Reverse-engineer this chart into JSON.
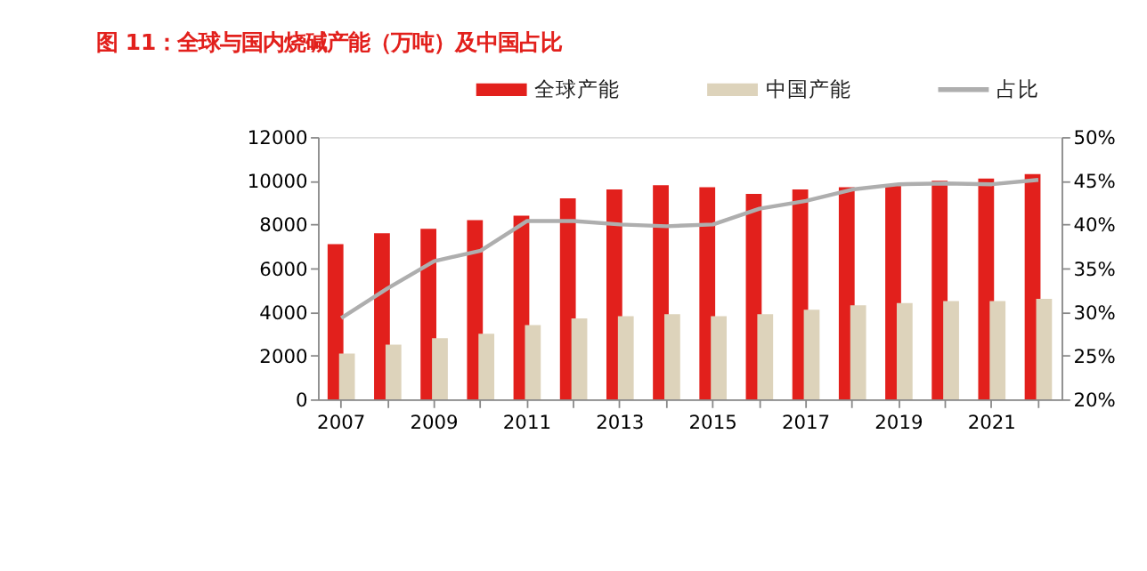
{
  "chart_data": {
    "type": "bar",
    "title": "图 11：全球与国内烧碱产能（万吨）及中国占比",
    "categories": [
      "2007",
      null,
      "2009",
      null,
      "2011",
      null,
      "2013",
      null,
      "2015",
      null,
      "2017",
      null,
      "2019",
      null,
      "2021",
      null
    ],
    "series": [
      {
        "name": "全球产能",
        "color": "#e2201c",
        "values": [
          7100,
          7600,
          7800,
          8200,
          8400,
          9200,
          9600,
          9800,
          9700,
          9400,
          9600,
          9700,
          9800,
          10000,
          10100,
          10300
        ]
      },
      {
        "name": "中国产能",
        "color": "#ddd3bb",
        "values": [
          2100,
          2500,
          2800,
          3000,
          3400,
          3700,
          3800,
          3900,
          3800,
          3900,
          4100,
          4300,
          4400,
          4500,
          4500,
          4600
        ]
      },
      {
        "name": "占比",
        "type": "line",
        "axis": "y2",
        "color": "#aeaeae",
        "values": [
          29.3,
          32.7,
          35.8,
          37.0,
          40.4,
          40.4,
          40.0,
          39.8,
          40.0,
          41.8,
          42.7,
          44.0,
          44.6,
          44.7,
          44.6,
          45.1
        ]
      }
    ],
    "ylim": [
      0,
      12000
    ],
    "yticks": [
      0,
      2000,
      4000,
      6000,
      8000,
      10000,
      12000
    ],
    "y2lim": [
      20,
      50
    ],
    "y2ticks": [
      {
        "value": 20,
        "label": "20%"
      },
      {
        "value": 25,
        "label": "25%"
      },
      {
        "value": 30,
        "label": "30%"
      },
      {
        "value": 35,
        "label": "35%"
      },
      {
        "value": 40,
        "label": "40%"
      },
      {
        "value": 45,
        "label": "45%"
      },
      {
        "value": 50,
        "label": "50%"
      }
    ],
    "grid": false,
    "legend": "top",
    "marker": "none",
    "line_style": "solid"
  }
}
